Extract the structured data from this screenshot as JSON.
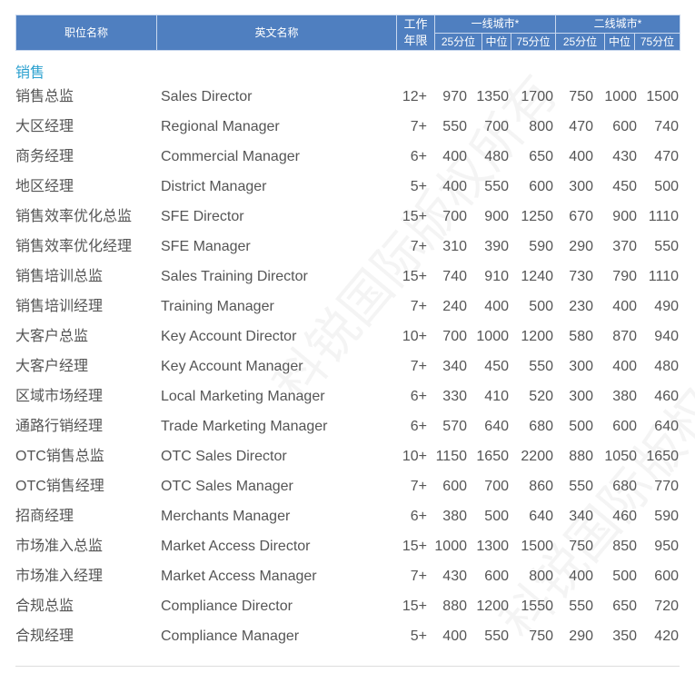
{
  "watermark": "科锐国际版权所有",
  "header": {
    "col_cn": "职位名称",
    "col_en": "英文名称",
    "col_years": "工作\n年限",
    "tier1": "一线城市*",
    "tier2": "二线城市*",
    "p25": "25分位",
    "p50": "中位",
    "p75": "75分位"
  },
  "section": "销售",
  "rows": [
    [
      "销售总监",
      "Sales Director",
      "12+",
      "970",
      "1350",
      "1700",
      "750",
      "1000",
      "1500"
    ],
    [
      "大区经理",
      "Regional Manager",
      "7+",
      "550",
      "700",
      "800",
      "470",
      "600",
      "740"
    ],
    [
      "商务经理",
      "Commercial Manager",
      "6+",
      "400",
      "480",
      "650",
      "400",
      "430",
      "470"
    ],
    [
      "地区经理",
      "District Manager",
      "5+",
      "400",
      "550",
      "600",
      "300",
      "450",
      "500"
    ],
    [
      "销售效率优化总监",
      "SFE Director",
      "15+",
      "700",
      "900",
      "1250",
      "670",
      "900",
      "1110"
    ],
    [
      "销售效率优化经理",
      "SFE Manager",
      "7+",
      "310",
      "390",
      "590",
      "290",
      "370",
      "550"
    ],
    [
      "销售培训总监",
      "Sales Training Director",
      "15+",
      "740",
      "910",
      "1240",
      "730",
      "790",
      "1110"
    ],
    [
      "销售培训经理",
      "Training Manager",
      "7+",
      "240",
      "400",
      "500",
      "230",
      "400",
      "490"
    ],
    [
      "大客户总监",
      "Key Account Director",
      "10+",
      "700",
      "1000",
      "1200",
      "580",
      "870",
      "940"
    ],
    [
      "大客户经理",
      "Key Account Manager",
      "7+",
      "340",
      "450",
      "550",
      "300",
      "400",
      "480"
    ],
    [
      "区域市场经理",
      "Local Marketing Manager",
      "6+",
      "330",
      "410",
      "520",
      "300",
      "380",
      "460"
    ],
    [
      "通路行销经理",
      "Trade Marketing Manager",
      "6+",
      "570",
      "640",
      "680",
      "500",
      "600",
      "640"
    ],
    [
      "OTC销售总监",
      "OTC Sales Director",
      "10+",
      "1150",
      "1650",
      "2200",
      "880",
      "1050",
      "1650"
    ],
    [
      "OTC销售经理",
      "OTC Sales Manager",
      "7+",
      "600",
      "700",
      "860",
      "550",
      "680",
      "770"
    ],
    [
      "招商经理",
      "Merchants Manager",
      "6+",
      "380",
      "500",
      "640",
      "340",
      "460",
      "590"
    ],
    [
      "市场准入总监",
      "Market Access Director",
      "15+",
      "1000",
      "1300",
      "1500",
      "750",
      "850",
      "950"
    ],
    [
      "市场准入经理",
      "Market Access Manager",
      "7+",
      "430",
      "600",
      "800",
      "400",
      "500",
      "600"
    ],
    [
      "合规总监",
      "Compliance Director",
      "15+",
      "880",
      "1200",
      "1550",
      "550",
      "650",
      "720"
    ],
    [
      "合规经理",
      "Compliance Manager",
      "5+",
      "400",
      "550",
      "750",
      "290",
      "350",
      "420"
    ]
  ]
}
